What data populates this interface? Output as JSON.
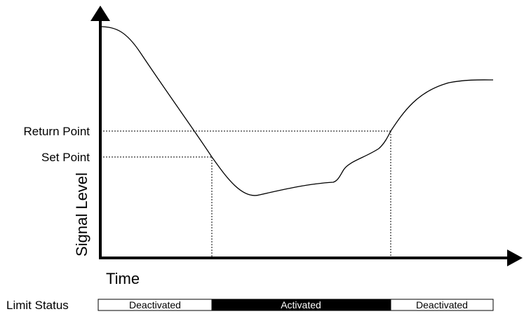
{
  "axes": {
    "x_label": "Time",
    "y_label": "Signal Level"
  },
  "levels": {
    "return_point": "Return Point",
    "set_point": "Set Point"
  },
  "status": {
    "label": "Limit Status",
    "segments": [
      {
        "text": "Deactivated",
        "state": "off"
      },
      {
        "text": "Activated",
        "state": "on"
      },
      {
        "text": "Deactivated",
        "state": "off"
      }
    ]
  },
  "colors": {
    "line": "#000000",
    "activated_fill": "#000000",
    "deactivated_fill": "#ffffff"
  }
}
